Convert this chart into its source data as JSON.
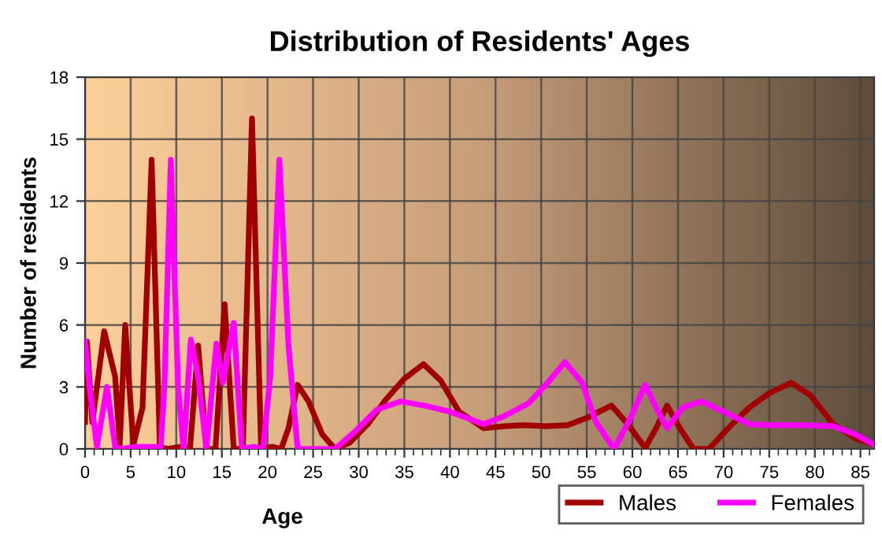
{
  "chart_data": {
    "type": "line",
    "title": "Distribution of Residents' Ages",
    "xlabel": "Age",
    "ylabel": "Number of residents",
    "xlim": [
      0,
      86.5
    ],
    "ylim": [
      0,
      18
    ],
    "xticks": [
      0,
      5,
      10,
      15,
      20,
      25,
      30,
      35,
      40,
      45,
      50,
      55,
      60,
      65,
      70,
      75,
      80,
      85
    ],
    "yticks": [
      0,
      3,
      6,
      9,
      12,
      15,
      18
    ],
    "grid": true,
    "legend": "bottom right",
    "line_style": "solid",
    "marker": "none",
    "series": [
      {
        "name": "Males",
        "color": "#a00000",
        "x": [
          0,
          0.2,
          0.8,
          2.1,
          3.3,
          3.8,
          4.4,
          5.3,
          6.3,
          7.3,
          8.2,
          9,
          10.5,
          11.5,
          12.4,
          13.3,
          14.3,
          15.3,
          16.3,
          17.3,
          18.3,
          19.3,
          20.5,
          21.5,
          22.3,
          23.3,
          24.5,
          26,
          27.4,
          29,
          31,
          33,
          35,
          37.1,
          39,
          41,
          43.7,
          46,
          48,
          50.5,
          52.9,
          55,
          57.7,
          59.5,
          61.4,
          62.6,
          63.8,
          65.2,
          66.7,
          68.4,
          70.5,
          72.8,
          75,
          77.4,
          79.5,
          82,
          84.5,
          86.5
        ],
        "values": [
          1.3,
          5.2,
          1.3,
          5.7,
          3.5,
          0.2,
          6,
          0.2,
          2,
          14,
          0.1,
          0,
          0.1,
          0,
          5,
          0,
          0,
          7,
          0,
          0,
          16,
          0,
          0.1,
          0,
          1,
          3.1,
          2.3,
          0.7,
          0,
          0.3,
          1.2,
          2.4,
          3.4,
          4.1,
          3.3,
          1.8,
          1,
          1.1,
          1.15,
          1.1,
          1.15,
          1.5,
          2.1,
          1.2,
          0.05,
          1,
          2.1,
          1,
          0,
          0,
          1,
          2,
          2.7,
          3.2,
          2.6,
          1.2,
          0.5,
          0.2
        ]
      },
      {
        "name": "Females",
        "color": "#ff00ff",
        "x": [
          0,
          0.5,
          1.3,
          2.4,
          3.3,
          4,
          5.5,
          7,
          8.3,
          8.7,
          9.4,
          10.2,
          10.8,
          11.6,
          12.4,
          13.3,
          14.4,
          15.1,
          16.3,
          17.2,
          18.5,
          19.5,
          20.3,
          21.3,
          22.3,
          23.3,
          25.5,
          27.4,
          29.5,
          32,
          34.6,
          37.2,
          40,
          43.7,
          46,
          48.6,
          50.5,
          52.6,
          54.5,
          56,
          58,
          59.8,
          61.4,
          62.6,
          63.8,
          65.5,
          67.6,
          70,
          72.8,
          75.5,
          78.5,
          82,
          84.5,
          86.5
        ],
        "values": [
          5.2,
          3,
          0.1,
          3,
          0.1,
          0,
          0.1,
          0.1,
          0.1,
          3,
          14,
          3,
          0,
          5.3,
          3.5,
          0,
          5.1,
          3.2,
          6.1,
          0,
          0.1,
          0,
          3.5,
          14,
          5,
          0,
          0,
          0,
          0.8,
          1.9,
          2.3,
          2.1,
          1.8,
          1.2,
          1.6,
          2.2,
          3.1,
          4.2,
          3.2,
          1.3,
          0,
          1.5,
          3.1,
          2,
          1,
          2,
          2.3,
          1.8,
          1.2,
          1.15,
          1.15,
          1.1,
          0.7,
          0.2
        ]
      }
    ]
  }
}
